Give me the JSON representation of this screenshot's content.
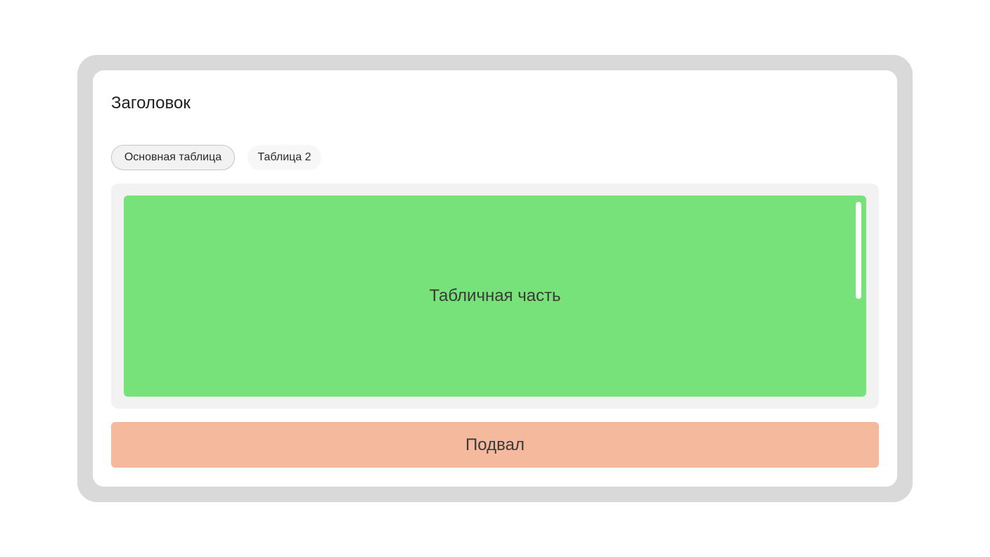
{
  "header": {
    "title": "Заголовок"
  },
  "tabs": [
    {
      "label": "Основная таблица",
      "active": true
    },
    {
      "label": "Таблица 2",
      "active": false
    }
  ],
  "table": {
    "label": "Табличная часть",
    "color": "#78e27a"
  },
  "footer": {
    "label": "Подвал",
    "color": "#f5b99d"
  },
  "frame": {
    "color": "#d9d9d9"
  }
}
